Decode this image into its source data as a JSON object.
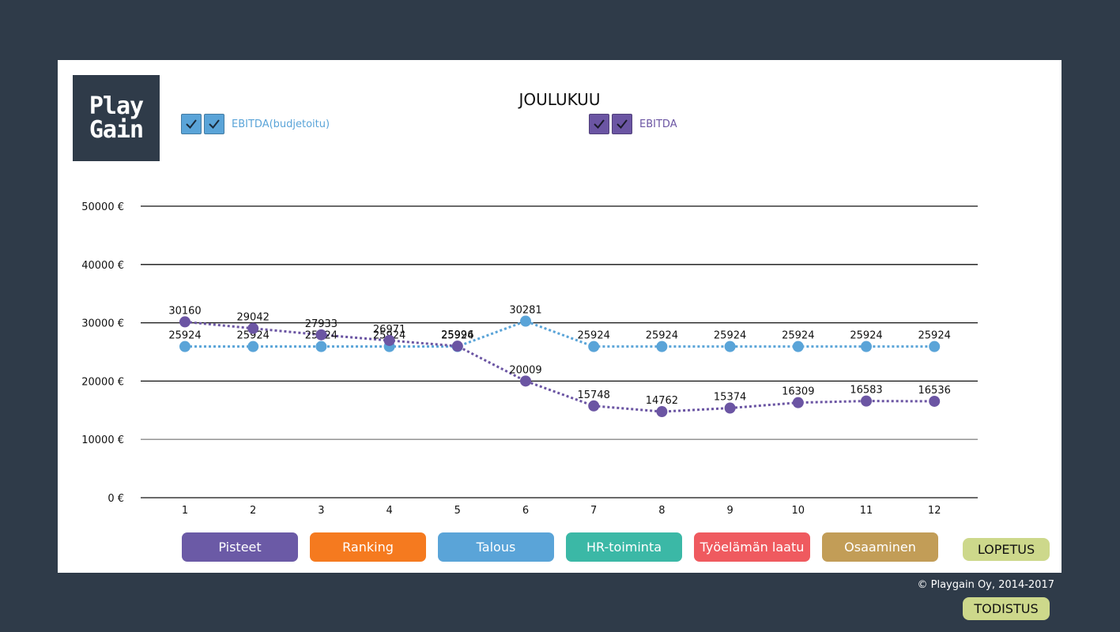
{
  "logo": {
    "line1": "Play",
    "line2": "Gain"
  },
  "title": "JOULUKUU",
  "legend": [
    {
      "label": "EBITDA(budjetoitu)",
      "color": "#5aa4d8"
    },
    {
      "label": "EBITDA",
      "color": "#6b55a3"
    }
  ],
  "chart_data": {
    "type": "line",
    "title": "JOULUKUU",
    "categories": [
      "1",
      "2",
      "3",
      "4",
      "5",
      "6",
      "7",
      "8",
      "9",
      "10",
      "11",
      "12"
    ],
    "y_ticks": [
      "0 €",
      "10000 €",
      "20000 €",
      "30000 €",
      "40000 €",
      "50000 €"
    ],
    "ylim": [
      0,
      50000
    ],
    "grid": true,
    "legend_position": "top",
    "series": [
      {
        "name": "EBITDA(budjetoitu)",
        "color": "#5aa4d8",
        "values": [
          25924,
          25924,
          25924,
          25924,
          25924,
          30281,
          25924,
          25924,
          25924,
          25924,
          25924,
          25924
        ]
      },
      {
        "name": "EBITDA",
        "color": "#6b55a3",
        "values": [
          30160,
          29042,
          27933,
          26971,
          25996,
          20009,
          15748,
          14762,
          15374,
          16309,
          16583,
          16536
        ]
      }
    ]
  },
  "nav_buttons": [
    {
      "label": "Pisteet",
      "color": "#6b5aa6"
    },
    {
      "label": "Ranking",
      "color": "#f57a1f"
    },
    {
      "label": "Talous",
      "color": "#5aa4d8"
    },
    {
      "label": "HR-toiminta",
      "color": "#3bb8a6"
    },
    {
      "label": "Työelämän laatu",
      "color": "#ef5a5f"
    },
    {
      "label": "Osaaminen",
      "color": "#c29d57"
    }
  ],
  "lopetus": "LOPETUS",
  "copyright": "© Playgain Oy, 2014-2017",
  "todistus": "TODISTUS"
}
